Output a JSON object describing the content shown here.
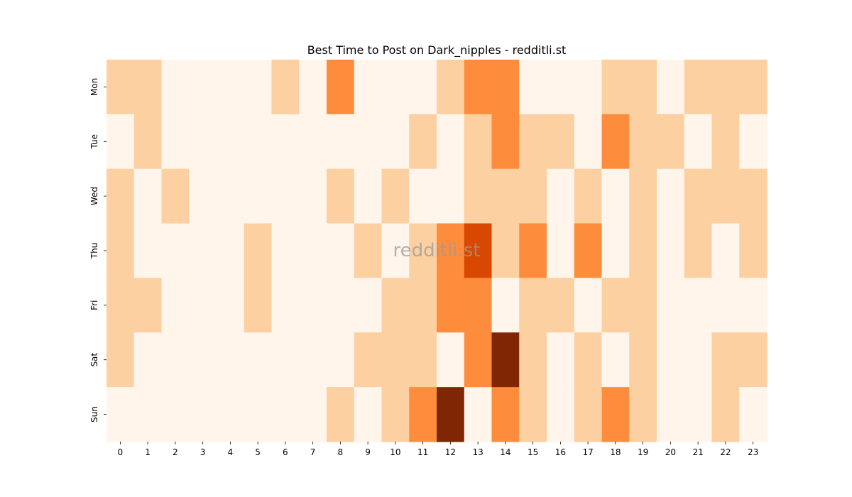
{
  "chart_data": {
    "type": "heatmap",
    "title": "Best Time to Post on Dark_nipples - redditli.st",
    "watermark": "redditli.st",
    "x_categories": [
      "0",
      "1",
      "2",
      "3",
      "4",
      "5",
      "6",
      "7",
      "8",
      "9",
      "10",
      "11",
      "12",
      "13",
      "14",
      "15",
      "16",
      "17",
      "18",
      "19",
      "20",
      "21",
      "22",
      "23"
    ],
    "y_categories": [
      "Mon",
      "Tue",
      "Wed",
      "Thu",
      "Fri",
      "Sat",
      "Sun"
    ],
    "values": [
      [
        1,
        1,
        0,
        0,
        0,
        0,
        1,
        0,
        2,
        0,
        0,
        0,
        1,
        2,
        2,
        0,
        0,
        0,
        1,
        1,
        0,
        1,
        1,
        1
      ],
      [
        0,
        1,
        0,
        0,
        0,
        0,
        0,
        0,
        0,
        0,
        0,
        1,
        0,
        1,
        2,
        1,
        1,
        0,
        2,
        1,
        1,
        0,
        1,
        0
      ],
      [
        1,
        0,
        1,
        0,
        0,
        0,
        0,
        0,
        1,
        0,
        1,
        0,
        0,
        1,
        1,
        1,
        0,
        1,
        0,
        1,
        0,
        1,
        1,
        1
      ],
      [
        1,
        0,
        0,
        0,
        0,
        1,
        0,
        0,
        0,
        1,
        0,
        1,
        2,
        3,
        1,
        2,
        0,
        2,
        0,
        1,
        0,
        1,
        0,
        1
      ],
      [
        1,
        1,
        0,
        0,
        0,
        1,
        0,
        0,
        0,
        0,
        1,
        1,
        2,
        2,
        0,
        1,
        1,
        0,
        1,
        1,
        0,
        0,
        0,
        0
      ],
      [
        1,
        0,
        0,
        0,
        0,
        0,
        0,
        0,
        0,
        1,
        1,
        1,
        0,
        2,
        4,
        1,
        0,
        1,
        0,
        1,
        0,
        0,
        1,
        1
      ],
      [
        0,
        0,
        0,
        0,
        0,
        0,
        0,
        0,
        1,
        0,
        1,
        2,
        4,
        0,
        2,
        1,
        0,
        1,
        2,
        1,
        0,
        0,
        1,
        0
      ]
    ],
    "colormap": "Oranges",
    "level_colors": [
      "#fff5eb",
      "#fdd0a2",
      "#fd8d3c",
      "#d94801",
      "#7f2704"
    ]
  }
}
